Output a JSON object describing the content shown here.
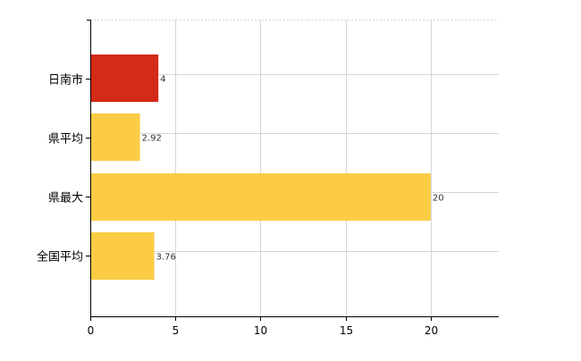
{
  "chart_data": {
    "type": "bar",
    "orientation": "horizontal",
    "categories": [
      "日南市",
      "県平均",
      "県最大",
      "全国平均"
    ],
    "values": [
      4,
      2.92,
      20,
      3.76
    ],
    "value_labels": [
      "4",
      "2.92",
      "20",
      "3.76"
    ],
    "bar_colors": [
      "#d42a18",
      "#fccc44",
      "#fccc44",
      "#fccc44"
    ],
    "xlim": [
      0,
      24
    ],
    "xticks": [
      0,
      5,
      10,
      15,
      20
    ],
    "xtick_labels": [
      "0",
      "5",
      "10",
      "15",
      "20"
    ],
    "grid": true,
    "grid_color": "#d6d6d6",
    "axis_color": "#000000",
    "title": "",
    "xlabel": "",
    "ylabel": ""
  }
}
